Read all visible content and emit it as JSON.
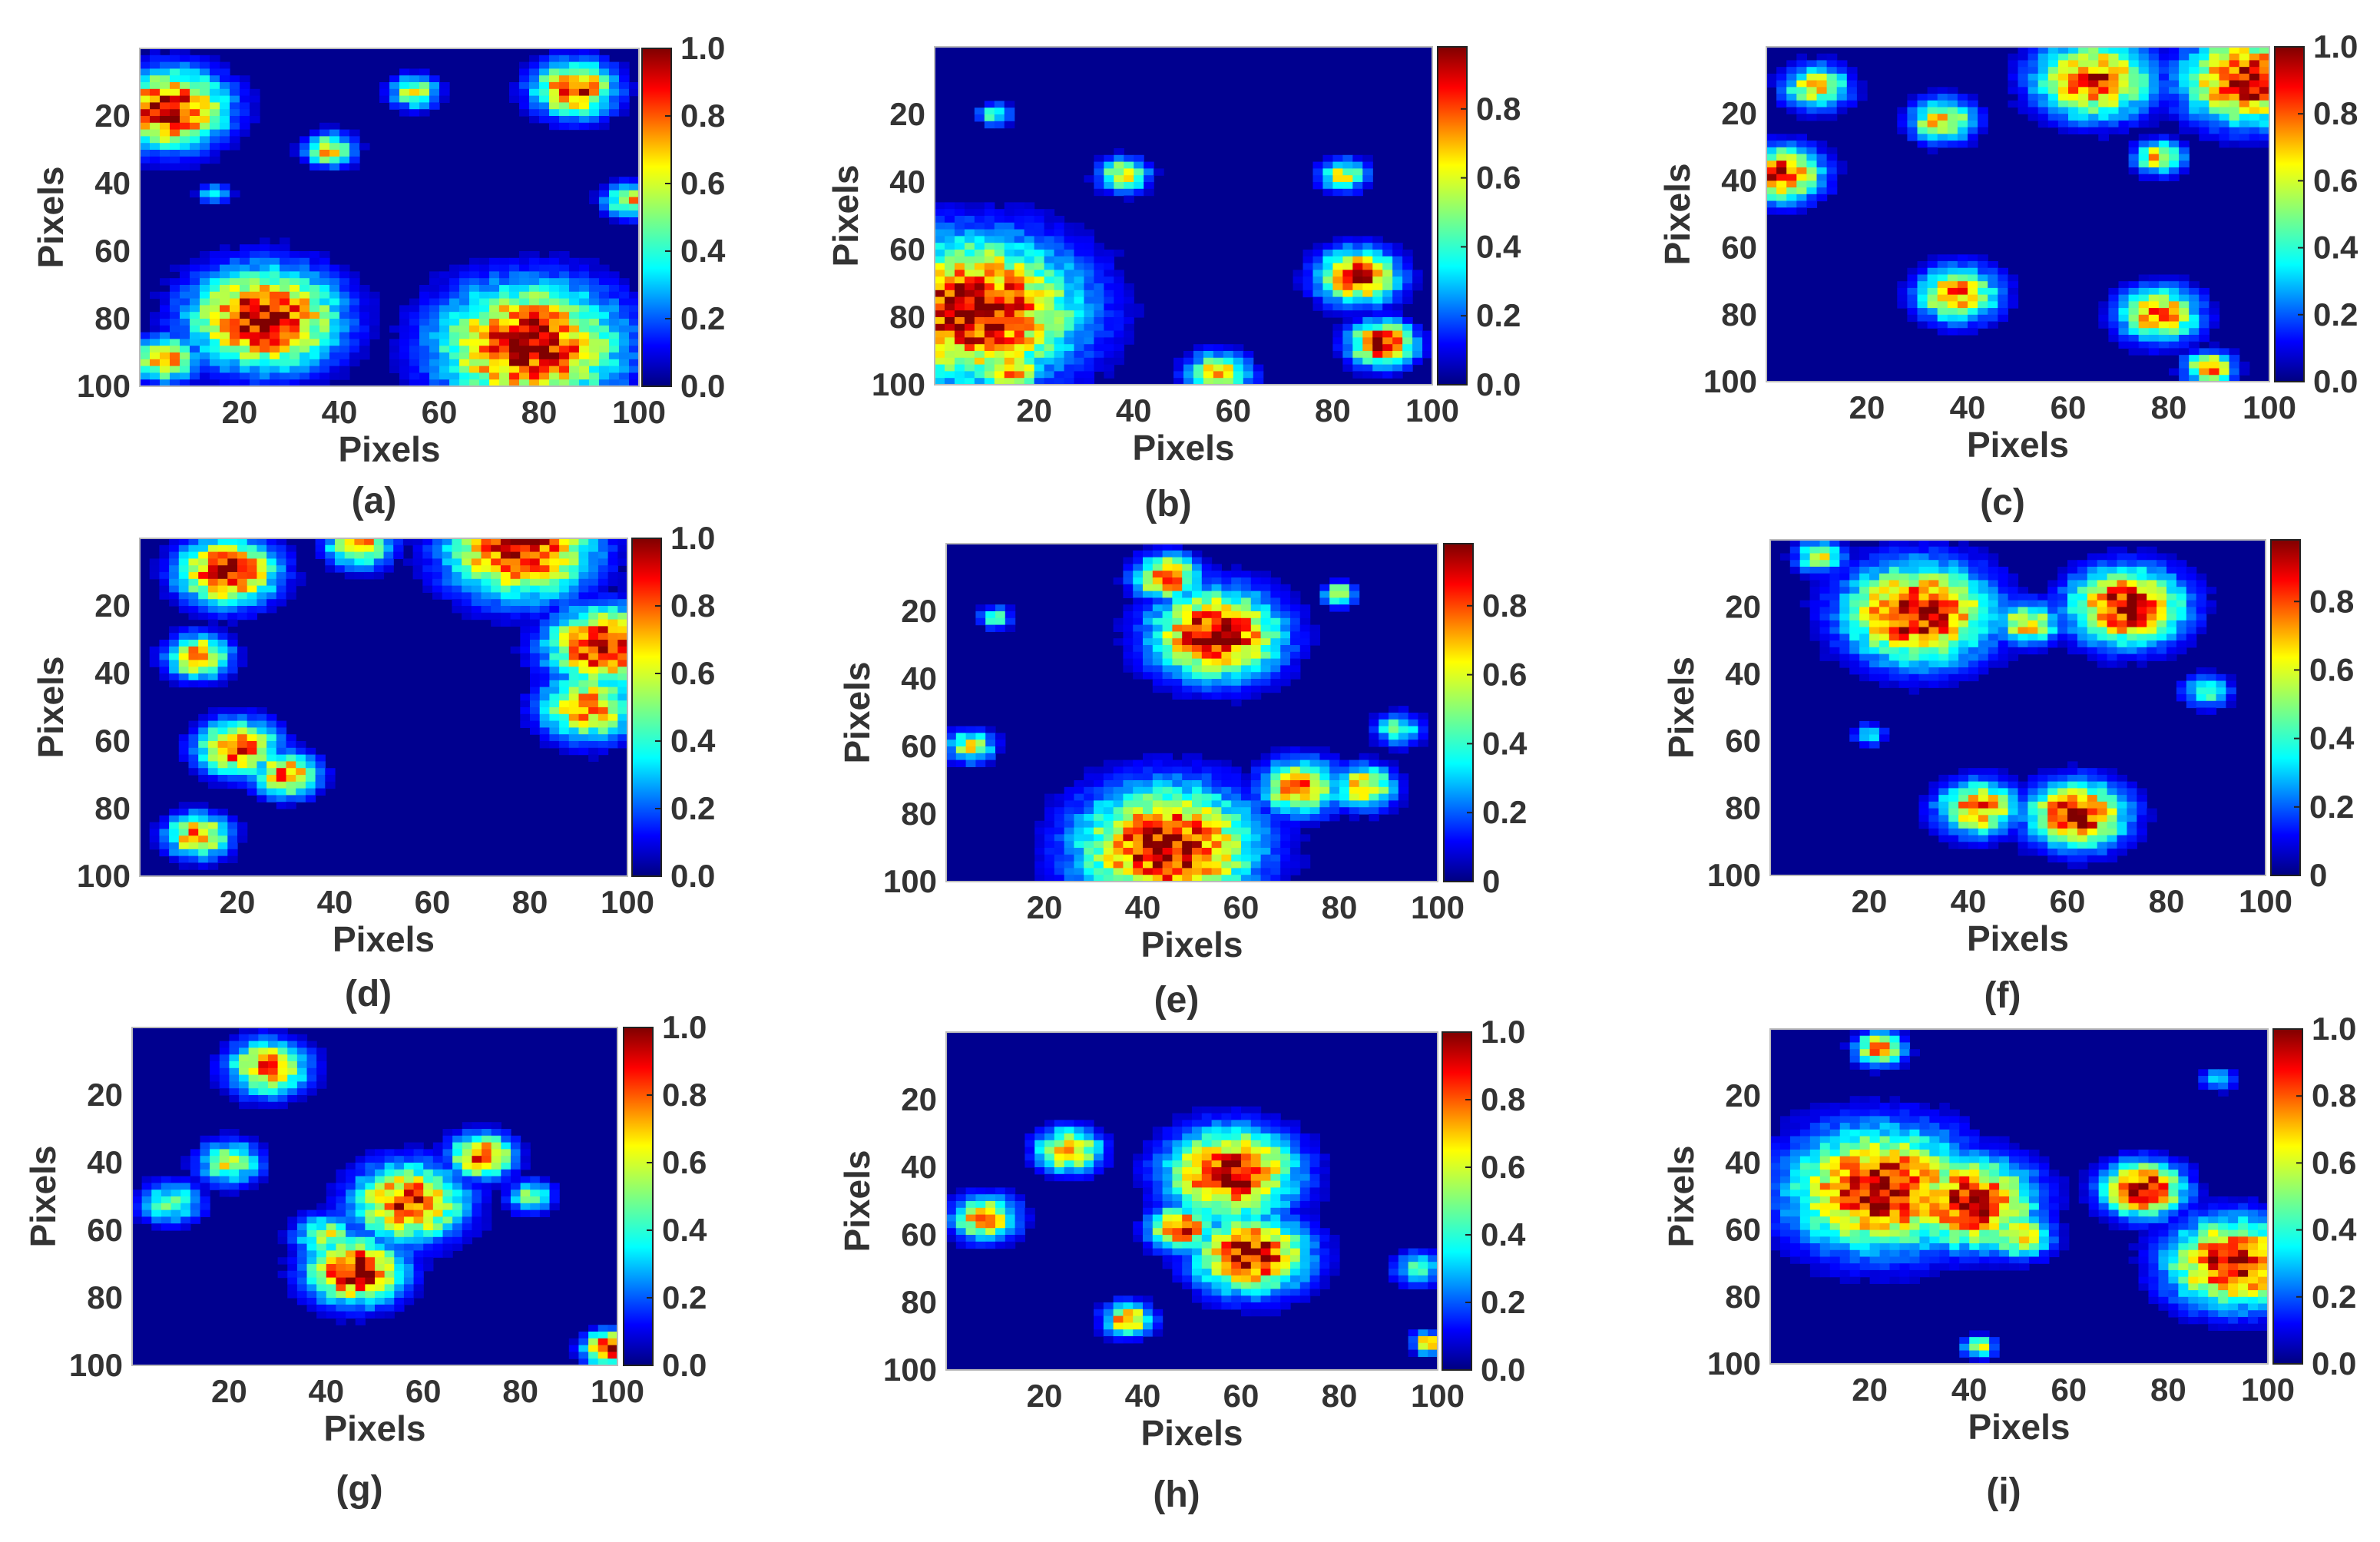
{
  "figure": {
    "panel_count": 9
  },
  "chart_data": [
    {
      "type": "heatmap",
      "label": "(a)",
      "xlabel": "Pixels",
      "ylabel": "Pixels",
      "xlim": [
        0,
        100
      ],
      "ylim": [
        0,
        100
      ],
      "xticks": [
        "20",
        "40",
        "60",
        "80",
        "100"
      ],
      "yticks": [
        "20",
        "40",
        "60",
        "80",
        "100"
      ],
      "colorbar_ticks": [
        "0.0",
        "0.2",
        "0.4",
        "0.6",
        "0.8",
        "1.0"
      ],
      "colorbar_range": [
        0,
        1.0
      ],
      "blobs": [
        {
          "x": 6,
          "y": 18,
          "r": 7,
          "v": 1.0
        },
        {
          "x": 25,
          "y": 80,
          "r": 9,
          "v": 1.0
        },
        {
          "x": 78,
          "y": 88,
          "r": 11,
          "v": 1.0
        },
        {
          "x": 87,
          "y": 12,
          "r": 5,
          "v": 0.9
        },
        {
          "x": 38,
          "y": 30,
          "r": 3,
          "v": 0.7
        },
        {
          "x": 55,
          "y": 13,
          "r": 3,
          "v": 0.6
        },
        {
          "x": 98,
          "y": 45,
          "r": 3,
          "v": 0.7
        },
        {
          "x": 5,
          "y": 92,
          "r": 4,
          "v": 0.8
        },
        {
          "x": 15,
          "y": 43,
          "r": 2,
          "v": 0.4
        }
      ]
    },
    {
      "type": "heatmap",
      "label": "(b)",
      "xlabel": "Pixels",
      "ylabel": "Pixels",
      "xlim": [
        0,
        100
      ],
      "ylim": [
        0,
        100
      ],
      "xticks": [
        "20",
        "40",
        "60",
        "80",
        "100"
      ],
      "yticks": [
        "20",
        "40",
        "60",
        "80",
        "100"
      ],
      "colorbar_ticks": [
        "0.0",
        "0.2",
        "0.4",
        "0.6",
        "0.8"
      ],
      "colorbar_range": [
        0,
        0.98
      ],
      "blobs": [
        {
          "x": 8,
          "y": 78,
          "r": 13,
          "v": 1.0
        },
        {
          "x": 85,
          "y": 68,
          "r": 5,
          "v": 0.9
        },
        {
          "x": 90,
          "y": 88,
          "r": 4,
          "v": 1.0
        },
        {
          "x": 38,
          "y": 38,
          "r": 3,
          "v": 0.7
        },
        {
          "x": 82,
          "y": 38,
          "r": 3,
          "v": 0.6
        },
        {
          "x": 15,
          "y": 96,
          "r": 4,
          "v": 0.8
        },
        {
          "x": 57,
          "y": 97,
          "r": 4,
          "v": 0.7
        },
        {
          "x": 12,
          "y": 20,
          "r": 2,
          "v": 0.5
        }
      ]
    },
    {
      "type": "heatmap",
      "label": "(c)",
      "xlabel": "Pixels",
      "ylabel": "Pixels",
      "xlim": [
        0,
        100
      ],
      "ylim": [
        0,
        100
      ],
      "xticks": [
        "20",
        "40",
        "60",
        "80",
        "100"
      ],
      "yticks": [
        "20",
        "40",
        "60",
        "80",
        "100"
      ],
      "colorbar_ticks": [
        "0.0",
        "0.2",
        "0.4",
        "0.6",
        "0.8",
        "1.0"
      ],
      "colorbar_range": [
        0,
        1.0
      ],
      "blobs": [
        {
          "x": 96,
          "y": 10,
          "r": 8,
          "v": 1.0
        },
        {
          "x": 65,
          "y": 10,
          "r": 7,
          "v": 0.9
        },
        {
          "x": 3,
          "y": 38,
          "r": 5,
          "v": 0.9
        },
        {
          "x": 38,
          "y": 74,
          "r": 5,
          "v": 0.8
        },
        {
          "x": 78,
          "y": 80,
          "r": 5,
          "v": 0.8
        },
        {
          "x": 35,
          "y": 22,
          "r": 4,
          "v": 0.7
        },
        {
          "x": 10,
          "y": 12,
          "r": 4,
          "v": 0.7
        },
        {
          "x": 88,
          "y": 96,
          "r": 3,
          "v": 0.8
        },
        {
          "x": 78,
          "y": 33,
          "r": 3,
          "v": 0.7
        }
      ]
    },
    {
      "type": "heatmap",
      "label": "(d)",
      "xlabel": "Pixels",
      "ylabel": "Pixels",
      "xlim": [
        0,
        100
      ],
      "ylim": [
        0,
        100
      ],
      "xticks": [
        "20",
        "40",
        "60",
        "80",
        "100"
      ],
      "yticks": [
        "20",
        "40",
        "60",
        "80",
        "100"
      ],
      "colorbar_ticks": [
        "0.0",
        "0.2",
        "0.4",
        "0.6",
        "0.8",
        "1.0"
      ],
      "colorbar_range": [
        0,
        1.0
      ],
      "blobs": [
        {
          "x": 78,
          "y": 3,
          "r": 9,
          "v": 1.0
        },
        {
          "x": 95,
          "y": 32,
          "r": 7,
          "v": 1.0
        },
        {
          "x": 18,
          "y": 10,
          "r": 6,
          "v": 1.0
        },
        {
          "x": 92,
          "y": 50,
          "r": 6,
          "v": 0.8
        },
        {
          "x": 20,
          "y": 62,
          "r": 5,
          "v": 0.9
        },
        {
          "x": 30,
          "y": 70,
          "r": 4,
          "v": 0.8
        },
        {
          "x": 12,
          "y": 35,
          "r": 4,
          "v": 0.8
        },
        {
          "x": 12,
          "y": 88,
          "r": 4,
          "v": 0.8
        },
        {
          "x": 45,
          "y": 2,
          "r": 4,
          "v": 0.8
        }
      ]
    },
    {
      "type": "heatmap",
      "label": "(e)",
      "xlabel": "Pixels",
      "ylabel": "Pixels",
      "xlim": [
        0,
        100
      ],
      "ylim": [
        0,
        100
      ],
      "xticks": [
        "20",
        "40",
        "60",
        "80",
        "100"
      ],
      "yticks": [
        "20",
        "40",
        "60",
        "80",
        "100"
      ],
      "colorbar_ticks": [
        "0",
        "0.2",
        "0.4",
        "0.6",
        "0.8"
      ],
      "colorbar_range": [
        0,
        0.98
      ],
      "blobs": [
        {
          "x": 45,
          "y": 90,
          "r": 11,
          "v": 1.0
        },
        {
          "x": 55,
          "y": 27,
          "r": 8,
          "v": 1.0
        },
        {
          "x": 45,
          "y": 10,
          "r": 4,
          "v": 0.9
        },
        {
          "x": 72,
          "y": 72,
          "r": 5,
          "v": 0.8
        },
        {
          "x": 85,
          "y": 72,
          "r": 4,
          "v": 0.7
        },
        {
          "x": 80,
          "y": 15,
          "r": 2,
          "v": 0.7
        },
        {
          "x": 5,
          "y": 60,
          "r": 3,
          "v": 0.6
        },
        {
          "x": 10,
          "y": 22,
          "r": 2,
          "v": 0.5
        },
        {
          "x": 92,
          "y": 55,
          "r": 3,
          "v": 0.5
        }
      ]
    },
    {
      "type": "heatmap",
      "label": "(f)",
      "xlabel": "Pixels",
      "ylabel": "Pixels",
      "xlim": [
        0,
        100
      ],
      "ylim": [
        0,
        100
      ],
      "xticks": [
        "20",
        "40",
        "60",
        "80",
        "100"
      ],
      "yticks": [
        "20",
        "40",
        "60",
        "80",
        "100"
      ],
      "colorbar_ticks": [
        "0",
        "0.2",
        "0.4",
        "0.6",
        "0.8"
      ],
      "colorbar_range": [
        0,
        0.98
      ],
      "blobs": [
        {
          "x": 30,
          "y": 22,
          "r": 9,
          "v": 1.0
        },
        {
          "x": 72,
          "y": 20,
          "r": 7,
          "v": 1.0
        },
        {
          "x": 62,
          "y": 82,
          "r": 6,
          "v": 1.0
        },
        {
          "x": 42,
          "y": 80,
          "r": 5,
          "v": 0.8
        },
        {
          "x": 10,
          "y": 5,
          "r": 3,
          "v": 0.6
        },
        {
          "x": 52,
          "y": 25,
          "r": 4,
          "v": 0.7
        },
        {
          "x": 88,
          "y": 45,
          "r": 3,
          "v": 0.5
        },
        {
          "x": 20,
          "y": 58,
          "r": 2,
          "v": 0.4
        }
      ]
    },
    {
      "type": "heatmap",
      "label": "(g)",
      "xlabel": "Pixels",
      "ylabel": "Pixels",
      "xlim": [
        0,
        100
      ],
      "ylim": [
        0,
        100
      ],
      "xticks": [
        "20",
        "40",
        "60",
        "80",
        "100"
      ],
      "yticks": [
        "20",
        "40",
        "60",
        "80",
        "100"
      ],
      "colorbar_ticks": [
        "0.0",
        "0.2",
        "0.4",
        "0.6",
        "0.8",
        "1.0"
      ],
      "colorbar_range": [
        0,
        1.0
      ],
      "blobs": [
        {
          "x": 46,
          "y": 72,
          "r": 6,
          "v": 1.0
        },
        {
          "x": 57,
          "y": 52,
          "r": 7,
          "v": 0.9
        },
        {
          "x": 72,
          "y": 38,
          "r": 4,
          "v": 0.9
        },
        {
          "x": 28,
          "y": 12,
          "r": 5,
          "v": 0.8
        },
        {
          "x": 98,
          "y": 95,
          "r": 3,
          "v": 1.0
        },
        {
          "x": 20,
          "y": 40,
          "r": 4,
          "v": 0.6
        },
        {
          "x": 8,
          "y": 52,
          "r": 4,
          "v": 0.5
        },
        {
          "x": 40,
          "y": 62,
          "r": 4,
          "v": 0.6
        },
        {
          "x": 82,
          "y": 50,
          "r": 3,
          "v": 0.5
        }
      ]
    },
    {
      "type": "heatmap",
      "label": "(h)",
      "xlabel": "Pixels",
      "ylabel": "Pixels",
      "xlim": [
        0,
        100
      ],
      "ylim": [
        0,
        100
      ],
      "xticks": [
        "20",
        "40",
        "60",
        "80",
        "100"
      ],
      "yticks": [
        "20",
        "40",
        "60",
        "80",
        "100"
      ],
      "colorbar_ticks": [
        "0.0",
        "0.2",
        "0.4",
        "0.6",
        "0.8",
        "1.0"
      ],
      "colorbar_range": [
        0,
        1.0
      ],
      "blobs": [
        {
          "x": 58,
          "y": 42,
          "r": 8,
          "v": 1.0
        },
        {
          "x": 62,
          "y": 66,
          "r": 7,
          "v": 1.0
        },
        {
          "x": 48,
          "y": 58,
          "r": 4,
          "v": 0.9
        },
        {
          "x": 25,
          "y": 35,
          "r": 4,
          "v": 0.8
        },
        {
          "x": 8,
          "y": 55,
          "r": 4,
          "v": 0.8
        },
        {
          "x": 37,
          "y": 85,
          "r": 3,
          "v": 0.8
        },
        {
          "x": 98,
          "y": 92,
          "r": 2,
          "v": 0.7
        },
        {
          "x": 96,
          "y": 70,
          "r": 3,
          "v": 0.5
        }
      ]
    },
    {
      "type": "heatmap",
      "label": "(i)",
      "xlabel": "Pixels",
      "ylabel": "Pixels",
      "xlim": [
        0,
        100
      ],
      "ylim": [
        0,
        100
      ],
      "xticks": [
        "20",
        "40",
        "60",
        "80",
        "100"
      ],
      "yticks": [
        "20",
        "40",
        "60",
        "80",
        "100"
      ],
      "colorbar_ticks": [
        "0.0",
        "0.2",
        "0.4",
        "0.6",
        "0.8",
        "1.0"
      ],
      "colorbar_range": [
        0,
        1.0
      ],
      "blobs": [
        {
          "x": 22,
          "y": 48,
          "r": 11,
          "v": 1.0
        },
        {
          "x": 40,
          "y": 52,
          "r": 8,
          "v": 1.0
        },
        {
          "x": 75,
          "y": 48,
          "r": 5,
          "v": 1.0
        },
        {
          "x": 93,
          "y": 70,
          "r": 8,
          "v": 1.0
        },
        {
          "x": 22,
          "y": 6,
          "r": 3,
          "v": 0.8
        },
        {
          "x": 50,
          "y": 62,
          "r": 4,
          "v": 0.7
        },
        {
          "x": 42,
          "y": 95,
          "r": 2,
          "v": 0.6
        },
        {
          "x": 90,
          "y": 15,
          "r": 2,
          "v": 0.4
        }
      ]
    }
  ]
}
